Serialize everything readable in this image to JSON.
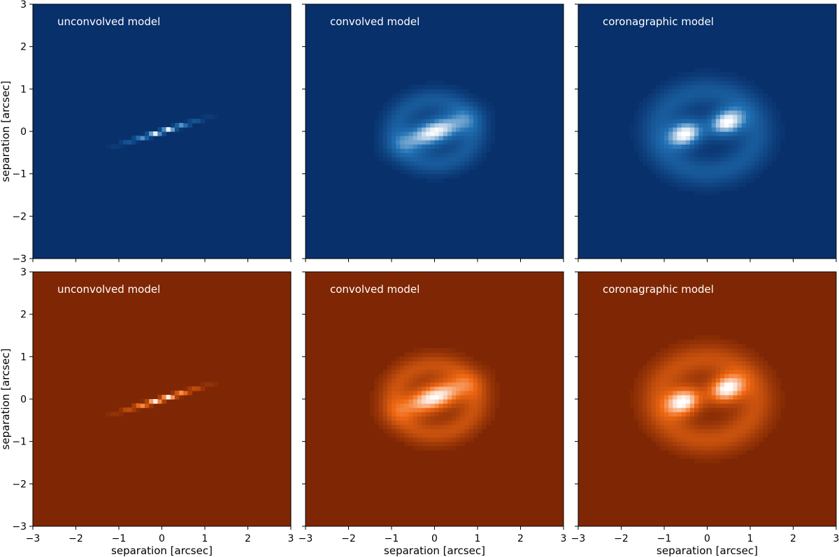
{
  "chart_data": {
    "type": "heatmap",
    "layout": "2x3 grid",
    "xlabel": "separation [arcsec]",
    "ylabel": "separation [arcsec]",
    "xlim": [
      -3,
      3
    ],
    "ylim": [
      -3,
      3
    ],
    "xticks": [
      -3,
      -2,
      -1,
      0,
      1,
      2,
      3
    ],
    "yticks": [
      -3,
      -2,
      -1,
      0,
      1,
      2,
      3
    ],
    "grid": false,
    "colormaps": {
      "top": {
        "name": "blue",
        "low": "#08306b",
        "mid": "#2171b5",
        "high": "#ffffff"
      },
      "bottom": {
        "name": "orange",
        "low": "#7f2704",
        "mid": "#f16913",
        "high": "#ffffff"
      }
    },
    "panels": [
      {
        "row": 0,
        "col": 0,
        "title": "unconvolved model",
        "colormap": "top",
        "features": [
          {
            "kind": "edge-on disk",
            "center": [
              0,
              0
            ],
            "sx": 0.55,
            "sy": 0.035,
            "pa_deg": 17,
            "amp": 1.0
          }
        ]
      },
      {
        "row": 0,
        "col": 1,
        "title": "convolved model",
        "colormap": "top",
        "features": [
          {
            "kind": "blurred disk",
            "center": [
              0,
              0
            ],
            "sx": 0.55,
            "sy": 0.22,
            "pa_deg": 20,
            "amp": 1.0
          },
          {
            "kind": "halo ring",
            "center": [
              0,
              0
            ],
            "radius": 0.75,
            "width": 0.2,
            "amp": 0.35
          }
        ]
      },
      {
        "row": 0,
        "col": 2,
        "title": "coronagraphic model",
        "colormap": "top",
        "features": [
          {
            "kind": "lobe",
            "center": [
              -0.5,
              -0.05
            ],
            "sx": 0.3,
            "sy": 0.22,
            "pa_deg": 20,
            "amp": 1.0
          },
          {
            "kind": "lobe",
            "center": [
              0.45,
              0.22
            ],
            "sx": 0.3,
            "sy": 0.22,
            "pa_deg": 20,
            "amp": 1.0
          },
          {
            "kind": "halo ring",
            "center": [
              0,
              0
            ],
            "radius": 0.95,
            "width": 0.25,
            "amp": 0.35
          }
        ]
      },
      {
        "row": 1,
        "col": 0,
        "title": "unconvolved model",
        "colormap": "bottom",
        "features": [
          {
            "kind": "edge-on disk",
            "center": [
              0,
              0
            ],
            "sx": 0.55,
            "sy": 0.035,
            "pa_deg": 17,
            "amp": 1.0
          }
        ]
      },
      {
        "row": 1,
        "col": 1,
        "title": "convolved model",
        "colormap": "bottom",
        "features": [
          {
            "kind": "blurred disk",
            "center": [
              0,
              0.05
            ],
            "sx": 0.55,
            "sy": 0.22,
            "pa_deg": 20,
            "amp": 1.0
          },
          {
            "kind": "halo ring",
            "center": [
              0,
              0
            ],
            "radius": 0.8,
            "width": 0.2,
            "amp": 0.35
          }
        ]
      },
      {
        "row": 1,
        "col": 2,
        "title": "coronagraphic model",
        "colormap": "bottom",
        "features": [
          {
            "kind": "lobe",
            "center": [
              -0.55,
              -0.05
            ],
            "sx": 0.3,
            "sy": 0.22,
            "pa_deg": 20,
            "amp": 1.0
          },
          {
            "kind": "lobe",
            "center": [
              0.45,
              0.25
            ],
            "sx": 0.3,
            "sy": 0.22,
            "pa_deg": 20,
            "amp": 1.0
          },
          {
            "kind": "halo ring",
            "center": [
              0,
              0
            ],
            "radius": 0.95,
            "width": 0.25,
            "amp": 0.35
          }
        ]
      }
    ]
  }
}
